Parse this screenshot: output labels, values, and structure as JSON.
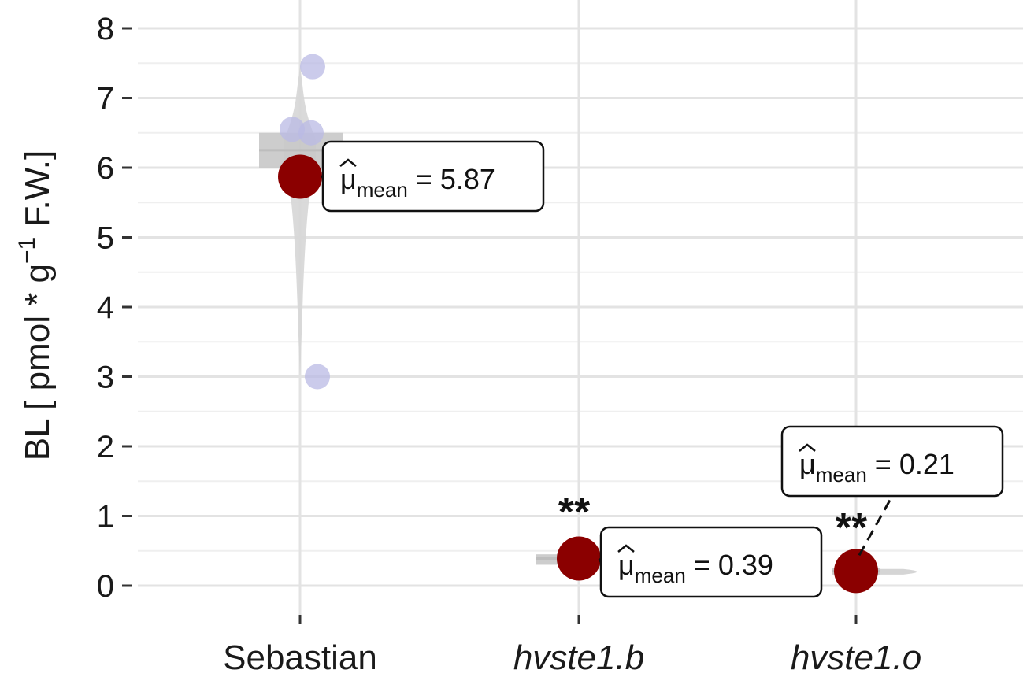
{
  "chart_data": {
    "type": "scatter",
    "subtype": "violin-box-point (ggstatsplot betweenstats)",
    "title": "",
    "xlabel": "",
    "ylabel": {
      "prefix": "BL [ pmol * g",
      "superscript": "−1",
      "suffix": " F.W.]"
    },
    "ylim": [
      0,
      8
    ],
    "yticks": [
      0,
      1,
      2,
      3,
      4,
      5,
      6,
      7,
      8
    ],
    "grid": true,
    "legend": "none",
    "categories": [
      {
        "label": "Sebastian",
        "italic": false
      },
      {
        "label": "hvste1.b",
        "italic": true
      },
      {
        "label": "hvste1.o",
        "italic": true
      }
    ],
    "groups": [
      {
        "category": "Sebastian",
        "points": [
          7.45,
          6.55,
          6.5,
          3.0
        ],
        "point_color": "#b9b9e4",
        "box": {
          "q1": 6.0,
          "median": 6.25,
          "q3": 6.5,
          "min": 3.0,
          "max": 7.45
        },
        "mean": 5.87,
        "mean_label": "5.87",
        "significance": ""
      },
      {
        "category": "hvste1.b",
        "points": [
          0.38,
          0.4
        ],
        "point_color": "#7fbf9a",
        "box": {
          "q1": 0.3,
          "median": 0.39,
          "q3": 0.45,
          "min": 0.3,
          "max": 0.45
        },
        "mean": 0.39,
        "mean_label": "0.39",
        "significance": "**"
      },
      {
        "category": "hvste1.o",
        "points": [
          0.2,
          0.22
        ],
        "point_color": "#f2a37a",
        "box": {
          "q1": 0.17,
          "median": 0.21,
          "q3": 0.25,
          "min": 0.15,
          "max": 0.27
        },
        "mean": 0.21,
        "mean_label": "0.21",
        "significance": "**"
      }
    ],
    "mean_point_color": "#8b0000",
    "mean_label_prefix": "μ",
    "mean_label_subscript": "mean",
    "mean_label_equals": " = ",
    "box_color": "#c8c8c8"
  }
}
